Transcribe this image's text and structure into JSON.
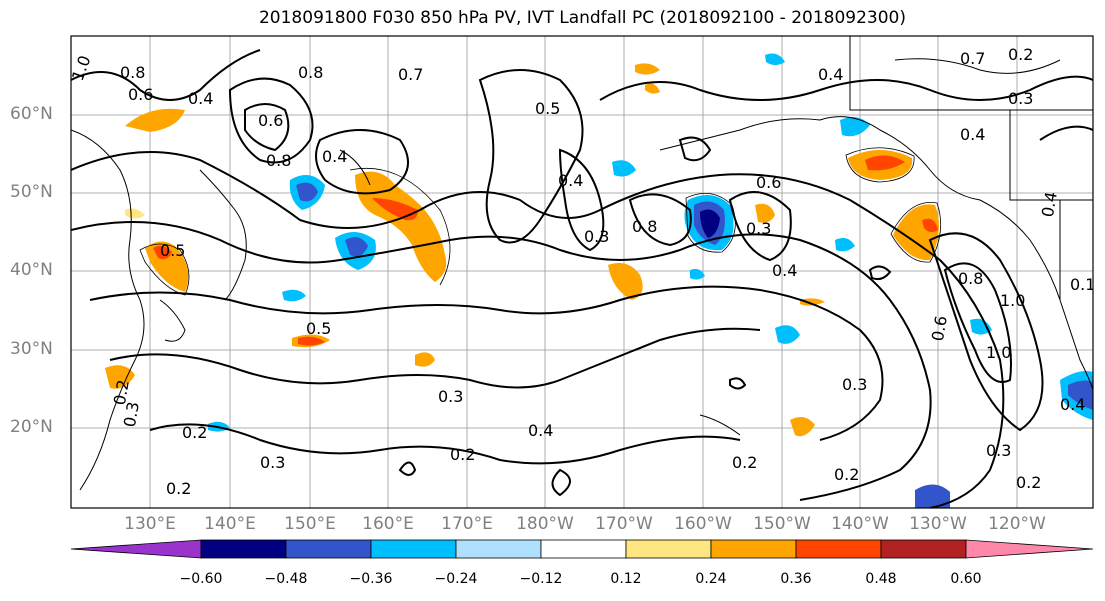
{
  "title": "2018091800 F030 850 hPa PV, IVT Landfall PC (2018092100 - 2018092300)",
  "lat_ticks": [
    "60°N",
    "50°N",
    "40°N",
    "30°N",
    "20°N"
  ],
  "lon_ticks": [
    "130°E",
    "140°E",
    "150°E",
    "160°E",
    "170°E",
    "180°W",
    "170°W",
    "160°W",
    "150°W",
    "140°W",
    "130°W",
    "120°W"
  ],
  "contour_labels": [
    "1.0",
    "0.8",
    "0.6",
    "0.4",
    "0.6",
    "0.8",
    "0.4",
    "0.7",
    "0.8",
    "0.7",
    "0.2",
    "0.4",
    "0.3",
    "0.4",
    "0.5",
    "0.5",
    "0.4",
    "0.3",
    "0.8",
    "0.6",
    "0.3",
    "0.4",
    "0.5",
    "0.3",
    "0.2",
    "0.3",
    "0.2",
    "0.2",
    "0.4",
    "0.2",
    "0.3",
    "0.2",
    "0.6",
    "0.8",
    "1.0",
    "0.3",
    "0.2",
    "0.4",
    "1.0",
    "0.2",
    "0.3",
    "0.1",
    "0.4"
  ],
  "colorbar": {
    "labels": [
      "−0.60",
      "−0.48",
      "−0.36",
      "−0.24",
      "−0.12",
      "0.12",
      "0.24",
      "0.36",
      "0.48",
      "0.60"
    ],
    "colors": [
      "#9933cc",
      "#000080",
      "#3355cc",
      "#00bfff",
      "#b0e0ff",
      "#ffffff",
      "#ffe680",
      "#ffa500",
      "#ff4500",
      "#b22222",
      "#ff88aa"
    ]
  },
  "legend_colors": {
    "contour": "#000000",
    "grid": "#999999",
    "coast": "#000000"
  }
}
